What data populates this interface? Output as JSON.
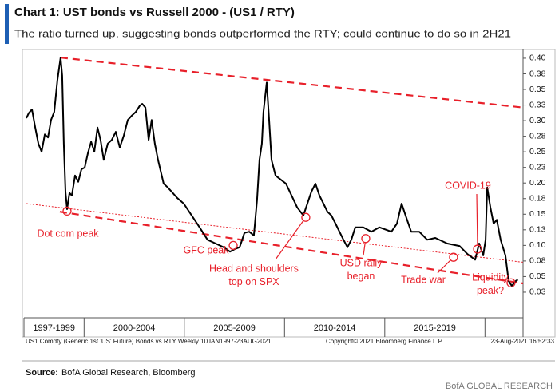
{
  "chart_data": {
    "type": "line",
    "title": "Chart 1: UST bonds vs Russell 2000 - (US1 / RTY)",
    "subtitle": "The ratio turned up, suggesting bonds outperformed the RTY; could continue to do so in 2H21",
    "x": [
      1997.12,
      1997.24,
      1997.4,
      1997.56,
      1997.72,
      1997.88,
      1998.04,
      1998.2,
      1998.35,
      1998.51,
      1998.67,
      1998.83,
      1998.91,
      1998.99,
      1999.07,
      1999.15,
      1999.27,
      1999.39,
      1999.55,
      1999.71,
      1999.87,
      2000.03,
      2000.19,
      2000.35,
      2000.51,
      2000.67,
      2000.82,
      2000.98,
      2001.18,
      2001.38,
      2001.58,
      2001.78,
      2001.98,
      2002.18,
      2002.38,
      2002.58,
      2002.78,
      2002.9,
      2003.06,
      2003.22,
      2003.37,
      2003.53,
      2003.69,
      2003.97,
      2004.17,
      2004.37,
      2004.65,
      2004.97,
      2005.37,
      2005.76,
      2006.16,
      2006.56,
      2006.96,
      2007.28,
      2007.52,
      2007.76,
      2008.0,
      2008.24,
      2008.47,
      2008.63,
      2008.75,
      2008.87,
      2008.95,
      2009.11,
      2009.23,
      2009.35,
      2009.55,
      2009.83,
      2010.07,
      2010.35,
      2010.63,
      2010.94,
      2011.14,
      2011.34,
      2011.54,
      2011.74,
      2011.94,
      2012.14,
      2012.34,
      2012.54,
      2012.74,
      2012.94,
      2013.14,
      2013.33,
      2013.53,
      2013.93,
      2014.33,
      2014.73,
      2015.33,
      2015.61,
      2015.84,
      2016.04,
      2016.32,
      2016.72,
      2017.12,
      2017.52,
      2018.12,
      2018.73,
      2019.13,
      2019.51,
      2019.71,
      2019.91,
      2020.03,
      2020.11,
      2020.27,
      2020.43,
      2020.59,
      2020.78,
      2021.02,
      2021.18,
      2021.34,
      2021.54,
      2021.64
    ],
    "series": [
      {
        "name": "US1 / RTY",
        "color": "#000000",
        "values": [
          0.304,
          0.312,
          0.318,
          0.289,
          0.263,
          0.25,
          0.278,
          0.273,
          0.301,
          0.314,
          0.365,
          0.401,
          0.372,
          0.263,
          0.186,
          0.158,
          0.184,
          0.18,
          0.212,
          0.202,
          0.222,
          0.225,
          0.248,
          0.266,
          0.25,
          0.289,
          0.269,
          0.237,
          0.263,
          0.269,
          0.282,
          0.257,
          0.276,
          0.301,
          0.308,
          0.314,
          0.324,
          0.327,
          0.321,
          0.269,
          0.301,
          0.263,
          0.237,
          0.199,
          0.193,
          0.186,
          0.176,
          0.167,
          0.148,
          0.129,
          0.109,
          0.103,
          0.097,
          0.09,
          0.094,
          0.097,
          0.12,
          0.122,
          0.116,
          0.173,
          0.237,
          0.263,
          0.314,
          0.361,
          0.301,
          0.237,
          0.212,
          0.205,
          0.199,
          0.18,
          0.161,
          0.148,
          0.167,
          0.186,
          0.199,
          0.18,
          0.167,
          0.154,
          0.148,
          0.135,
          0.122,
          0.109,
          0.097,
          0.109,
          0.129,
          0.129,
          0.122,
          0.129,
          0.122,
          0.135,
          0.167,
          0.148,
          0.122,
          0.122,
          0.109,
          0.112,
          0.103,
          0.099,
          0.086,
          0.077,
          0.103,
          0.084,
          0.109,
          0.193,
          0.161,
          0.135,
          0.141,
          0.109,
          0.084,
          0.043,
          0.035,
          0.043,
          0.045
        ]
      }
    ],
    "xlim": [
      1997.0,
      2021.9
    ],
    "ylim": [
      -0.016,
      0.414
    ],
    "yticks": [
      {
        "value": 0.4,
        "label": "0.40"
      },
      {
        "value": 0.375,
        "label": "0.38"
      },
      {
        "value": 0.35,
        "label": "0.35"
      },
      {
        "value": 0.325,
        "label": "0.33"
      },
      {
        "value": 0.3,
        "label": "0.30"
      },
      {
        "value": 0.275,
        "label": "0.28"
      },
      {
        "value": 0.25,
        "label": "0.25"
      },
      {
        "value": 0.225,
        "label": "0.23"
      },
      {
        "value": 0.2,
        "label": "0.20"
      },
      {
        "value": 0.175,
        "label": "0.18"
      },
      {
        "value": 0.15,
        "label": "0.15"
      },
      {
        "value": 0.125,
        "label": "0.13"
      },
      {
        "value": 0.1,
        "label": "0.10"
      },
      {
        "value": 0.075,
        "label": "0.08"
      },
      {
        "value": 0.05,
        "label": "0.05"
      },
      {
        "value": 0.025,
        "label": "0.03"
      }
    ],
    "y_axis_side": "right",
    "periods": [
      "1997-1999",
      "2000-2004",
      "2005-2009",
      "2010-2014",
      "2015-2019"
    ],
    "period_bounds": [
      1997.0,
      2000.0,
      2005.0,
      2010.0,
      2015.0,
      2020.0
    ],
    "trend_color": "#e8202a",
    "trendlines": [
      {
        "style": "dashed",
        "x1": 1998.83,
        "y1": 0.401,
        "x2": 2021.9,
        "y2": 0.321
      },
      {
        "style": "dashed",
        "x1": 1998.79,
        "y1": 0.154,
        "x2": 2021.9,
        "y2": 0.039
      },
      {
        "style": "dotted",
        "x1": 1997.12,
        "y1": 0.167,
        "x2": 2021.9,
        "y2": 0.073
      }
    ],
    "annotations": [
      {
        "text": [
          "Dot com peak"
        ],
        "x": 1999.15,
        "y": 0.155
      },
      {
        "text": [
          "GFC peak"
        ],
        "x": 2007.44,
        "y": 0.1
      },
      {
        "text": [
          "Head and shoulders",
          "top on SPX"
        ],
        "x": 2011.06,
        "y": 0.145
      },
      {
        "text": [
          "USD rally",
          "began"
        ],
        "x": 2014.05,
        "y": 0.111
      },
      {
        "text": [
          "Trade war"
        ],
        "x": 2018.43,
        "y": 0.081
      },
      {
        "text": [
          "COVID-19"
        ],
        "x": 2019.63,
        "y": 0.094
      },
      {
        "text": [
          "Liquidity",
          "peak?"
        ],
        "x": 2021.3,
        "y": 0.04
      }
    ],
    "footer_left": "US1 Comdty (Generic 1st 'US' Future) Bonds vs RTY  Weekly 10JAN1997-23AUG2021",
    "footer_middle": "Copyright© 2021 Bloomberg Finance L.P.",
    "footer_right": "23-Aug-2021 16:52:33",
    "source_label": "Source:",
    "source": "BofA Global Research, Bloomberg",
    "brand": "BofA GLOBAL RESEARCH"
  }
}
